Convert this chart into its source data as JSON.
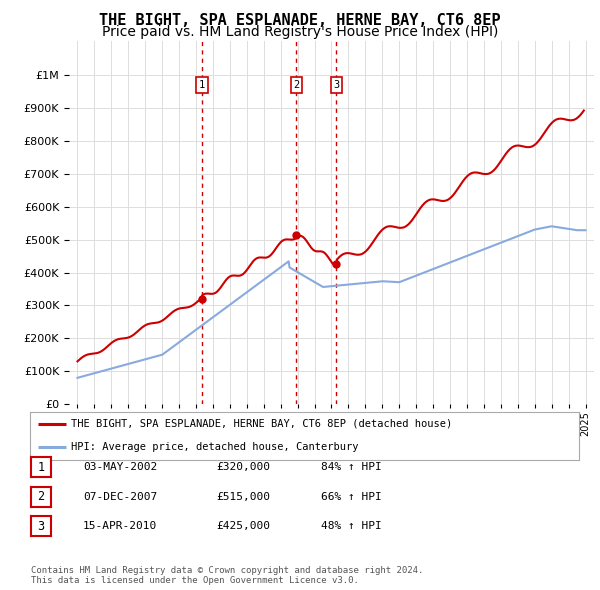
{
  "title": "THE BIGHT, SPA ESPLANADE, HERNE BAY, CT6 8EP",
  "subtitle": "Price paid vs. HM Land Registry's House Price Index (HPI)",
  "ylim": [
    0,
    1050000
  ],
  "yticks": [
    0,
    100000,
    200000,
    300000,
    400000,
    500000,
    600000,
    700000,
    800000,
    900000,
    1000000
  ],
  "xlim_start": 1994.5,
  "xlim_end": 2025.5,
  "sale_dates": [
    2002.34,
    2007.92,
    2010.29
  ],
  "sale_prices": [
    320000,
    515000,
    425000
  ],
  "sale_labels": [
    "1",
    "2",
    "3"
  ],
  "vline_color": "#cc0000",
  "vline_style": ":",
  "sale_marker_color": "#cc0000",
  "hpi_line_color": "#88aadd",
  "price_line_color": "#cc0000",
  "legend_entries": [
    "THE BIGHT, SPA ESPLANADE, HERNE BAY, CT6 8EP (detached house)",
    "HPI: Average price, detached house, Canterbury"
  ],
  "table_rows": [
    [
      "1",
      "03-MAY-2002",
      "£320,000",
      "84% ↑ HPI"
    ],
    [
      "2",
      "07-DEC-2007",
      "£515,000",
      "66% ↑ HPI"
    ],
    [
      "3",
      "15-APR-2010",
      "£425,000",
      "48% ↑ HPI"
    ]
  ],
  "footer": "Contains HM Land Registry data © Crown copyright and database right 2024.\nThis data is licensed under the Open Government Licence v3.0.",
  "background_color": "#ffffff",
  "grid_color": "#dddddd",
  "title_fontsize": 11,
  "subtitle_fontsize": 10,
  "tick_label_fontsize": 8.0
}
